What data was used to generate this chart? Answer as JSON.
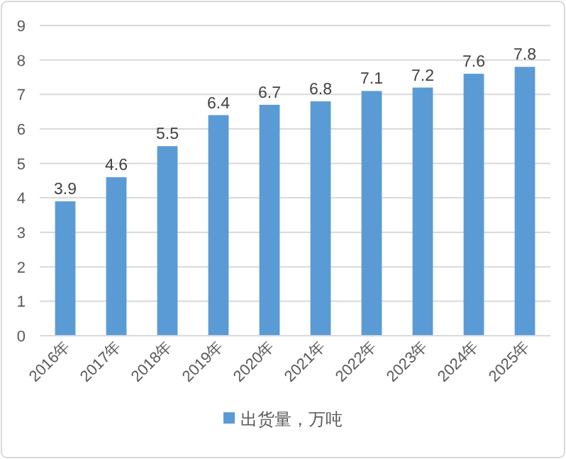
{
  "chart_data": {
    "type": "bar",
    "categories": [
      "2016年",
      "2017年",
      "2018年",
      "2019年",
      "2020年",
      "2021年",
      "2022年",
      "2023年",
      "2024年",
      "2025年"
    ],
    "series": [
      {
        "name": "出货量，万吨",
        "color": "#5b9bd5",
        "values": [
          3.9,
          4.6,
          5.5,
          6.4,
          6.7,
          6.8,
          7.1,
          7.2,
          7.6,
          7.8
        ]
      }
    ],
    "ylim": [
      0,
      9
    ],
    "yticks": [
      0,
      1,
      2,
      3,
      4,
      5,
      6,
      7,
      8,
      9
    ],
    "grid": "y",
    "data_labels": true,
    "legend": "bottom"
  }
}
